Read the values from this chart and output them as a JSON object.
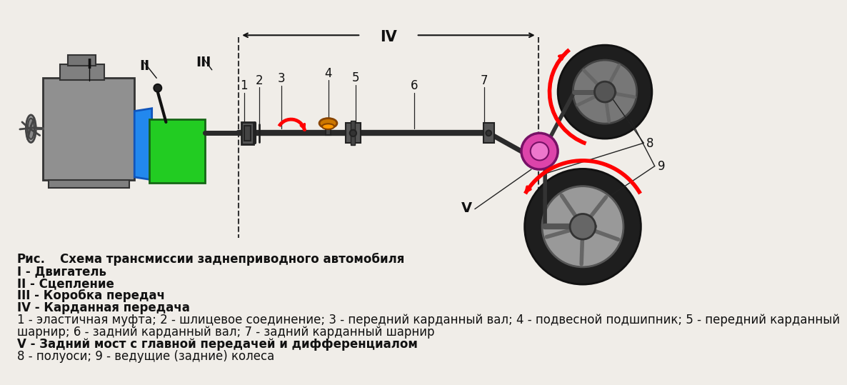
{
  "bg_color": "#f0ede8",
  "line_color": "#1a1a1a",
  "legend_lines": [
    "I - Двигатель",
    "II - Сцепление",
    "III - Коробка передач",
    "IV - Карданная передача",
    "1 - эластичная муфта; 2 - шлицевое соединение; 3 - передний карданный вал; 4 - подвесной подшипник; 5 - передний карданный",
    "шарнир; 6 - задний карданный вал; 7 - задний карданный шарнир",
    "V - Задний мост с главной передачей и дифференциалом",
    "8 - полуоси; 9 - ведущие (задние) колеса"
  ],
  "ris_text": "Рис.    Схема трансмиссии заднеприводного автомобиля"
}
